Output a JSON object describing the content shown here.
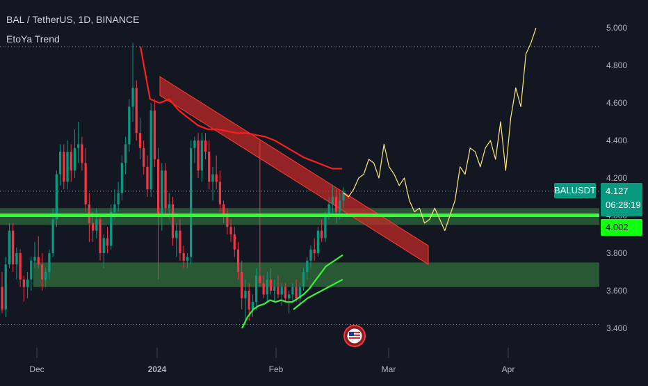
{
  "header": {
    "title": "BAL / TetherUS, 1D, BINANCE",
    "indicator": "EtoYa Trend"
  },
  "symbol_tag": {
    "ticker": "BALUSDT",
    "last_price": "4.127",
    "countdown": "06:28:19",
    "level_price": "4.002"
  },
  "colors": {
    "background": "#131722",
    "up": "#089981",
    "down": "#f23645",
    "green_band": "#33ff33",
    "red_channel": "#e53935",
    "projection": "#ffe97a",
    "ma_red": "#ff1e1e",
    "ma_green": "#3cf23c"
  },
  "icons": [
    "us-flag-event-icon"
  ],
  "chart_data": {
    "type": "candlestick",
    "title": "BAL / TetherUS, 1D, BINANCE",
    "y_axis": {
      "ticks": [
        "3.400",
        "3.600",
        "3.800",
        "4.000",
        "4.200",
        "4.400",
        "4.600",
        "4.800",
        "5.000"
      ],
      "range": [
        3.35,
        5.07
      ]
    },
    "x_axis": {
      "ticks": [
        "Dec",
        "2024",
        "Feb",
        "Mar",
        "Apr"
      ]
    },
    "candles_ohlc": [
      [
        3.62,
        3.7,
        3.48,
        3.5
      ],
      [
        3.5,
        3.78,
        3.46,
        3.74
      ],
      [
        3.74,
        3.96,
        3.72,
        3.92
      ],
      [
        3.92,
        3.96,
        3.7,
        3.74
      ],
      [
        3.74,
        3.83,
        3.66,
        3.8
      ],
      [
        3.8,
        3.82,
        3.62,
        3.66
      ],
      [
        3.66,
        3.68,
        3.54,
        3.62
      ],
      [
        3.62,
        3.7,
        3.56,
        3.66
      ],
      [
        3.66,
        3.78,
        3.6,
        3.76
      ],
      [
        3.76,
        3.86,
        3.72,
        3.78
      ],
      [
        3.78,
        3.89,
        3.72,
        3.74
      ],
      [
        3.74,
        3.8,
        3.6,
        3.66
      ],
      [
        3.66,
        3.72,
        3.62,
        3.7
      ],
      [
        3.7,
        3.82,
        3.66,
        3.8
      ],
      [
        3.8,
        4.04,
        3.78,
        3.98
      ],
      [
        3.98,
        4.24,
        3.94,
        4.22
      ],
      [
        4.22,
        4.38,
        4.16,
        4.34
      ],
      [
        4.34,
        4.38,
        4.14,
        4.18
      ],
      [
        4.18,
        4.4,
        4.14,
        4.34
      ],
      [
        4.34,
        4.38,
        4.18,
        4.24
      ],
      [
        4.24,
        4.46,
        4.2,
        4.36
      ],
      [
        4.36,
        4.5,
        4.28,
        4.38
      ],
      [
        4.38,
        4.42,
        4.24,
        4.28
      ],
      [
        4.28,
        4.36,
        4.02,
        4.06
      ],
      [
        4.06,
        4.12,
        3.86,
        3.96
      ],
      [
        3.96,
        4.02,
        3.86,
        3.92
      ],
      [
        3.92,
        4.04,
        3.88,
        3.98
      ],
      [
        3.98,
        4.0,
        3.76,
        3.8
      ],
      [
        3.8,
        3.9,
        3.72,
        3.88
      ],
      [
        3.88,
        3.94,
        3.8,
        3.84
      ],
      [
        3.84,
        4.06,
        3.82,
        4.02
      ],
      [
        4.02,
        4.14,
        3.98,
        4.06
      ],
      [
        4.06,
        4.18,
        4.02,
        4.12
      ],
      [
        4.12,
        4.32,
        4.08,
        4.28
      ],
      [
        4.28,
        4.42,
        4.22,
        4.38
      ],
      [
        4.38,
        4.62,
        4.34,
        4.58
      ],
      [
        4.58,
        4.92,
        4.5,
        4.68
      ],
      [
        4.68,
        4.72,
        4.4,
        4.44
      ],
      [
        4.44,
        4.52,
        4.3,
        4.36
      ],
      [
        4.36,
        4.4,
        4.22,
        4.26
      ],
      [
        4.26,
        4.32,
        4.1,
        4.14
      ],
      [
        4.14,
        4.6,
        4.1,
        4.56
      ],
      [
        4.56,
        4.62,
        4.26,
        4.3
      ],
      [
        4.3,
        4.36,
        3.66,
        4.0
      ],
      [
        4.0,
        4.28,
        3.92,
        4.24
      ],
      [
        4.24,
        4.28,
        4.0,
        4.04
      ],
      [
        4.04,
        4.12,
        3.98,
        4.06
      ],
      [
        4.06,
        4.1,
        3.84,
        3.88
      ],
      [
        3.88,
        3.96,
        3.78,
        3.92
      ],
      [
        3.92,
        3.98,
        3.76,
        3.8
      ],
      [
        3.8,
        3.84,
        3.72,
        3.76
      ],
      [
        3.76,
        3.8,
        3.72,
        3.78
      ],
      [
        3.78,
        4.4,
        3.74,
        4.36
      ],
      [
        4.36,
        4.42,
        4.28,
        4.4
      ],
      [
        4.4,
        4.44,
        4.2,
        4.24
      ],
      [
        4.24,
        4.44,
        4.18,
        4.4
      ],
      [
        4.4,
        4.44,
        4.3,
        4.34
      ],
      [
        4.34,
        4.4,
        4.14,
        4.18
      ],
      [
        4.18,
        4.26,
        4.08,
        4.22
      ],
      [
        4.22,
        4.32,
        4.14,
        4.18
      ],
      [
        4.18,
        4.24,
        4.02,
        4.06
      ],
      [
        4.06,
        4.08,
        3.96,
        4.0
      ],
      [
        4.0,
        4.04,
        3.9,
        3.94
      ],
      [
        3.94,
        3.98,
        3.86,
        3.9
      ],
      [
        3.9,
        3.94,
        3.78,
        3.82
      ],
      [
        3.82,
        3.86,
        3.66,
        3.7
      ],
      [
        3.7,
        3.76,
        3.5,
        3.56
      ],
      [
        3.56,
        3.66,
        3.42,
        3.6
      ],
      [
        3.6,
        3.64,
        3.44,
        3.5
      ],
      [
        3.5,
        3.58,
        3.46,
        3.54
      ],
      [
        3.54,
        3.72,
        3.5,
        3.68
      ],
      [
        3.68,
        4.4,
        3.62,
        3.64
      ],
      [
        3.64,
        3.68,
        3.56,
        3.58
      ],
      [
        3.58,
        3.7,
        3.54,
        3.66
      ],
      [
        3.66,
        3.72,
        3.58,
        3.6
      ],
      [
        3.6,
        3.66,
        3.54,
        3.62
      ],
      [
        3.62,
        3.68,
        3.56,
        3.58
      ],
      [
        3.58,
        3.64,
        3.52,
        3.62
      ],
      [
        3.62,
        3.64,
        3.54,
        3.56
      ],
      [
        3.56,
        3.6,
        3.48,
        3.58
      ],
      [
        3.58,
        3.64,
        3.54,
        3.62
      ],
      [
        3.62,
        3.66,
        3.54,
        3.56
      ],
      [
        3.56,
        3.64,
        3.52,
        3.62
      ],
      [
        3.62,
        3.72,
        3.6,
        3.7
      ],
      [
        3.7,
        3.78,
        3.66,
        3.76
      ],
      [
        3.76,
        3.84,
        3.72,
        3.82
      ],
      [
        3.82,
        3.88,
        3.76,
        3.8
      ],
      [
        3.8,
        3.94,
        3.78,
        3.92
      ],
      [
        3.92,
        3.98,
        3.86,
        3.88
      ],
      [
        3.88,
        4.02,
        3.86,
        4.0
      ],
      [
        4.0,
        4.1,
        3.98,
        4.06
      ],
      [
        4.06,
        4.16,
        4.0,
        4.1
      ],
      [
        4.1,
        4.14,
        3.96,
        4.02
      ],
      [
        4.02,
        4.12,
        3.98,
        4.08
      ],
      [
        4.08,
        4.15,
        4.04,
        4.127
      ]
    ],
    "projection_path": [
      4.12,
      4.1,
      4.14,
      4.2,
      4.22,
      4.3,
      4.28,
      4.2,
      4.38,
      4.26,
      4.22,
      4.16,
      4.2,
      4.08,
      4.02,
      4.04,
      3.96,
      3.98,
      4.04,
      3.98,
      3.92,
      4.0,
      4.08,
      4.26,
      4.22,
      4.36,
      4.34,
      4.26,
      4.36,
      4.4,
      4.3,
      4.5,
      4.24,
      4.52,
      4.68,
      4.58,
      4.86,
      4.92,
      5.0
    ],
    "ma_red": [
      4.9,
      4.62,
      4.6,
      4.62,
      4.56,
      4.52,
      4.48,
      4.46,
      4.46,
      4.45,
      4.44,
      4.44,
      4.43,
      4.42,
      4.4,
      4.37,
      4.34,
      4.31,
      4.29,
      4.27,
      4.25,
      4.25
    ],
    "ma_green_a": [
      3.4,
      3.46,
      3.5,
      3.52,
      3.53,
      3.55,
      3.54,
      3.55,
      3.54,
      3.54,
      3.56,
      3.58,
      3.61,
      3.65,
      3.69,
      3.73,
      3.75,
      3.77,
      3.79
    ],
    "ma_green_b": [
      3.5,
      3.53,
      3.56,
      3.58,
      3.6,
      3.62,
      3.64,
      3.66
    ],
    "levels": {
      "green_line": 4.002,
      "resistance_zone": [
        3.95,
        4.04
      ],
      "support_zone": [
        3.62,
        3.75
      ],
      "dotted_levels": [
        4.9,
        4.13,
        3.42
      ]
    },
    "descending_channel": {
      "upper_start": 4.74,
      "upper_end": 3.84,
      "lower_start": 4.64,
      "lower_end": 3.74
    },
    "grid": false,
    "legend": "top-left"
  }
}
